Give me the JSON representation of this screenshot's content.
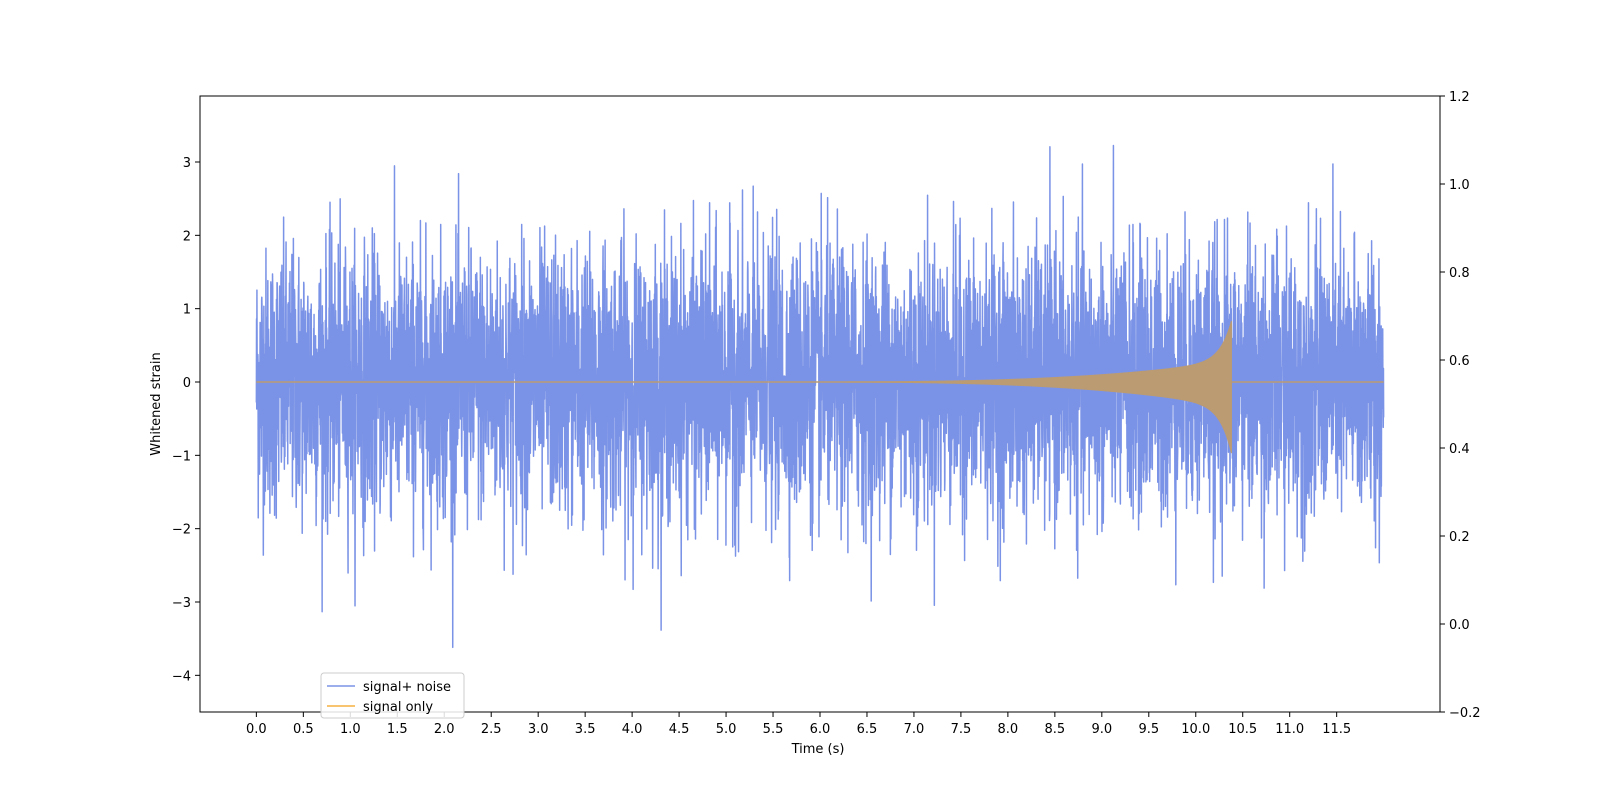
{
  "chart_data": {
    "type": "line",
    "title": "",
    "xlabel": "Time (s)",
    "ylabel": "Whitened strain",
    "xlim": [
      -0.6,
      12.6
    ],
    "ylim": [
      -4.5,
      3.9
    ],
    "y2lim": [
      -0.2,
      1.2
    ],
    "xticks": [
      0.0,
      0.5,
      1.0,
      1.5,
      2.0,
      2.5,
      3.0,
      3.5,
      4.0,
      4.5,
      5.0,
      5.5,
      6.0,
      6.5,
      7.0,
      7.5,
      8.0,
      8.5,
      9.0,
      9.5,
      10.0,
      10.5,
      11.0,
      11.5
    ],
    "xtick_labels": [
      "0.0",
      "0.5",
      "1.0",
      "1.5",
      "2.0",
      "2.5",
      "3.0",
      "3.5",
      "4.0",
      "4.5",
      "5.0",
      "5.5",
      "6.0",
      "6.5",
      "7.0",
      "7.5",
      "8.0",
      "8.5",
      "9.0",
      "9.5",
      "10.0",
      "10.5",
      "11.0",
      "11.5"
    ],
    "yticks": [
      3,
      2,
      1,
      0,
      -1,
      -2,
      -3,
      -4
    ],
    "ytick_labels": [
      "3",
      "2",
      "1",
      "0",
      "−1",
      "−2",
      "−3",
      "−4"
    ],
    "y2ticks": [
      1.2,
      1.0,
      0.8,
      0.6,
      0.4,
      0.2,
      0.0,
      -0.2
    ],
    "y2tick_labels": [
      "1.2",
      "1.0",
      "0.8",
      "0.6",
      "0.4",
      "0.2",
      "0.0",
      "−0.2"
    ],
    "series": [
      {
        "name": "signal+ noise",
        "color": "#7b93e6",
        "description_values": {
          "x_range": [
            0.0,
            12.0
          ],
          "noise_peak_max": 3.55,
          "noise_peak_min": -4.1,
          "typical_band": [
            -1.6,
            1.6
          ]
        }
      },
      {
        "name": "signal only",
        "color": "#f5b041",
        "description_values": {
          "x_range": [
            0.0,
            12.0
          ],
          "chirp_onset": 5.5,
          "merger_time": 10.38,
          "peak_amplitude_pos": 0.83,
          "peak_amplitude_neg": -0.97,
          "post_merger_value": 0.0
        }
      }
    ],
    "legend": {
      "position": "lower-left",
      "entries": [
        "signal+ noise",
        "signal only"
      ]
    },
    "grid": false
  }
}
